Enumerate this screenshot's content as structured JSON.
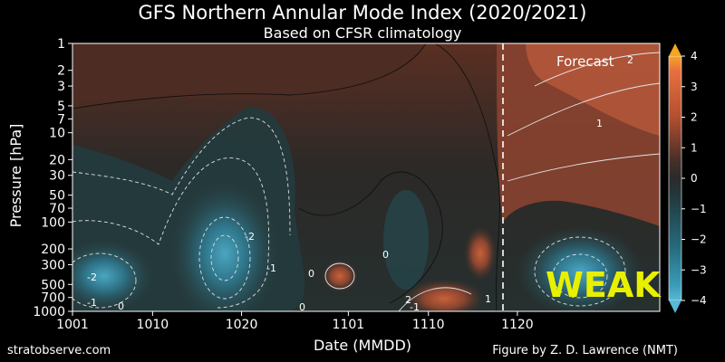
{
  "chart_data": {
    "type": "heatmap",
    "title": "GFS Northern Annular Mode Index (2020/2021)",
    "subtitle": "Based on CFSR climatology",
    "xlabel": "Date (MMDD)",
    "ylabel": "Pressure [hPa]",
    "x_ticks": [
      "1001",
      "1010",
      "1020",
      "1101",
      "1110",
      "1120"
    ],
    "y_ticks": [
      "1",
      "2",
      "3",
      "5",
      "7",
      "10",
      "20",
      "30",
      "50",
      "70",
      "100",
      "200",
      "300",
      "500",
      "700",
      "1000"
    ],
    "y_scale": "log",
    "y_axis_inverted": true,
    "colorbar": {
      "ticks": [
        "4",
        "3",
        "2",
        "1",
        "0",
        "−1",
        "−2",
        "−3",
        "−4"
      ],
      "range": [
        -4,
        4
      ],
      "colors": {
        "negative": "#3a9db8",
        "zero": "#2a2a2a",
        "positive": "#e8703f"
      }
    },
    "annotations": {
      "forecast_label": "Forecast",
      "status_label": "WEAK",
      "status_color": "#e8f000",
      "contour_labels": [
        "2",
        "-2",
        "-1",
        "0",
        "-2",
        "0",
        "0",
        "0",
        "1",
        "1",
        "-1",
        "2",
        "-1"
      ]
    },
    "approx_values": {
      "note_dates": [
        "1001",
        "1010",
        "1020",
        "1101",
        "1110",
        "1120"
      ],
      "upper_stratosphere_10hPa": [
        -0.3,
        -1.2,
        -1.6,
        0.2,
        0.4,
        1.5
      ],
      "lower_troposphere_300hPa": [
        -2.3,
        -0.6,
        -3.0,
        -0.5,
        0.5,
        -1.8
      ]
    }
  },
  "footer": {
    "left": "stratobserve.com",
    "right": "Figure by Z. D. Lawrence (NMT)"
  }
}
